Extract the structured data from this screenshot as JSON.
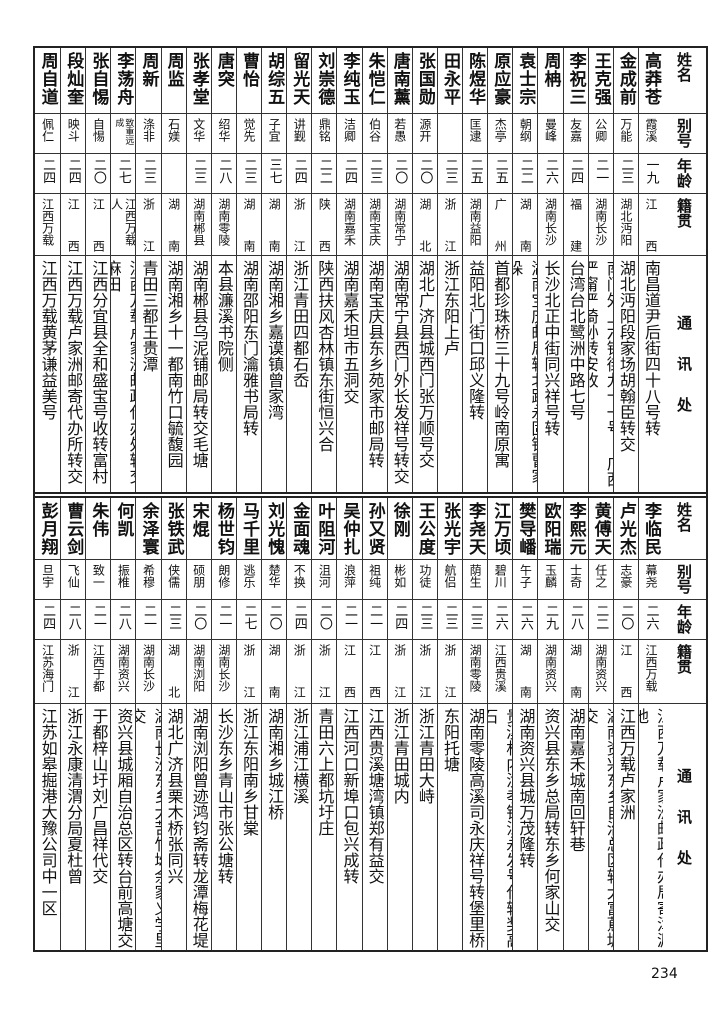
{
  "headers": {
    "name": "姓名",
    "alias": "别号",
    "age": "年龄",
    "native": "籍贯",
    "address": "通讯处"
  },
  "top": [
    {
      "name": "高莽苍",
      "alias": "霞溪",
      "age": "一九",
      "native": "江西",
      "address": "南昌道尹后街四十八号转"
    },
    {
      "name": "金成前",
      "alias": "万能",
      "age": "二三",
      "native": "湖北沔阳",
      "address": "湖北沔阳段家场胡翰臣转交"
    },
    {
      "name": "王克强",
      "alias": "公卿",
      "age": "二一",
      "native": "湖南长沙",
      "address": "南门外上六铺街九十一号\n广西严甯严猗孙转安收"
    },
    {
      "name": "李祝三",
      "alias": "友嘉",
      "age": "二四",
      "native": "福建",
      "address": "台湾台北鹭洲中路七号"
    },
    {
      "name": "周柟",
      "alias": "曼峰",
      "age": "二六",
      "native": "湖南长沙",
      "address": "长沙北正中街同兴祥号转"
    },
    {
      "name": "袁士宗",
      "alias": "朝纲",
      "age": "二二",
      "native": "湖南",
      "address": "湖南宝庆邮局转北路永固镇曹家垛"
    },
    {
      "name": "原应豪",
      "alias": "杰亭",
      "age": "二五",
      "native": "广州",
      "address": "首都珍珠桥三十九号岭南原寓"
    },
    {
      "name": "陈煜华",
      "alias": "匡逮",
      "age": "二五",
      "native": "湖南益阳",
      "address": "益阳北门街口邱义隆转"
    },
    {
      "name": "田永平",
      "alias": "",
      "age": "二三",
      "native": "浙江",
      "address": "浙江东阳上卢"
    },
    {
      "name": "张国勋",
      "alias": "源开",
      "age": "二〇",
      "native": "湖北",
      "address": "湖北广济县城西门张万顺号交"
    },
    {
      "name": "唐南薰",
      "alias": "若愚",
      "age": "二〇",
      "native": "湖南常宁",
      "address": "湖南常宁县西门外长发祥号转交"
    },
    {
      "name": "朱恺仁",
      "alias": "伯谷",
      "age": "二三",
      "native": "湖南宝庆",
      "address": "湖南宝庆县东乡苑家市邮局转"
    },
    {
      "name": "李纯玉",
      "alias": "洁卿",
      "age": "二四",
      "native": "湖南嘉禾",
      "address": "湖南嘉禾坦市五洞交"
    },
    {
      "name": "刘崇德",
      "alias": "鼎铭",
      "age": "二二",
      "native": "陕西",
      "address": "陕西扶风杏林镇东街恒兴合"
    },
    {
      "name": "留光天",
      "alias": "讲觐",
      "age": "二四",
      "native": "浙江",
      "address": "浙江青田四都石岙"
    },
    {
      "name": "胡综五",
      "alias": "子宜",
      "age": "三七",
      "native": "湖南",
      "address": "湖南湘乡嘉谟镇曾家湾"
    },
    {
      "name": "曹怡",
      "alias": "觉先",
      "age": "二三",
      "native": "湖南",
      "address": "湖南邵阳东门瀹雅书局转"
    },
    {
      "name": "唐突",
      "alias": "绍华",
      "age": "二八",
      "native": "湖南零陵",
      "address": "本县濂溪书院侧"
    },
    {
      "name": "张孝堂",
      "alias": "文华",
      "age": "二三",
      "native": "湖南郴县",
      "address": "湖南郴县乌泥铺邮局转交毛塘"
    },
    {
      "name": "周监",
      "alias": "石媄",
      "age": "",
      "native": "湖南",
      "address": "湖南湘乡十一都南竹口毓馥园"
    },
    {
      "name": "周新",
      "alias": "涤非",
      "age": "二三",
      "native": "浙江",
      "address": "青田三都王贵潭"
    },
    {
      "name": "李荡舟",
      "alias": "致重远成",
      "age": "二七",
      "native": "江西万载人",
      "address": "江西万载卢家洲邮政代办处转交麻田"
    },
    {
      "name": "张自惕",
      "alias": "自惕",
      "age": "二〇",
      "native": "江西",
      "address": "江西分宜县全和盛宝号收转富村"
    },
    {
      "name": "段灿奎",
      "alias": "映斗",
      "age": "二四",
      "native": "江西",
      "address": "江西万载卢家洲邮寄代办所转交"
    },
    {
      "name": "周自道",
      "alias": "佩仁",
      "age": "二四",
      "native": "江西万载",
      "address": "江西万载黄茅谦益美号"
    }
  ],
  "bottom": [
    {
      "name": "李临民",
      "alias": "幕尧",
      "age": "二六",
      "native": "江西万载",
      "address": "江西万载卢家洲邮政代办局寄漳源地"
    },
    {
      "name": "卢光杰",
      "alias": "志豪",
      "age": "二〇",
      "native": "江西",
      "address": "江西万载卢家洲"
    },
    {
      "name": "黄傅天",
      "alias": "任之",
      "age": "二二",
      "native": "湖南资兴",
      "address": "湖南资兴东乡自治总区转大富蔦塘交"
    },
    {
      "name": "李熙元",
      "alias": "士奇",
      "age": "二八",
      "native": "湖南",
      "address": "湖南嘉禾城南回轩巷"
    },
    {
      "name": "欧阳瑞",
      "alias": "玉麟",
      "age": "二九",
      "native": "湖南资兴",
      "address": "资兴县东乡总局转东乡何家山交"
    },
    {
      "name": "樊导嶓",
      "alias": "午子",
      "age": "二六",
      "native": "湖南",
      "address": "湖南资兴县城万茂隆转"
    },
    {
      "name": "江万顷",
      "alias": "碧川",
      "age": "二六",
      "native": "江西贵溪",
      "address": "贵溪村内汝孝铎江永发号代转奖高石"
    },
    {
      "name": "李尧天",
      "alias": "荫生",
      "age": "二三",
      "native": "湖南零陵",
      "address": "湖南零陵高溪司永庆祥号转堡里桥"
    },
    {
      "name": "张光宇",
      "alias": "航侣",
      "age": "二三",
      "native": "浙江",
      "address": "东阳托塘"
    },
    {
      "name": "王公度",
      "alias": "功徒",
      "age": "二三",
      "native": "浙江",
      "address": "浙江青田大峙"
    },
    {
      "name": "徐刚",
      "alias": "彬如",
      "age": "二四",
      "native": "浙江",
      "address": "浙江青田城内"
    },
    {
      "name": "孙又贤",
      "alias": "祖纯",
      "age": "二一",
      "native": "江西",
      "address": "江西贵溪塘湾镇郑有益交"
    },
    {
      "name": "吴仲扎",
      "alias": "浪萍",
      "age": "二一",
      "native": "江西",
      "address": "江西河口新埠口包兴成转"
    },
    {
      "name": "叶阻河",
      "alias": "沮河",
      "age": "二〇",
      "native": "浙江",
      "address": "青田六上都坑圩庄"
    },
    {
      "name": "金面魂",
      "alias": "不换",
      "age": "二四",
      "native": "浙江",
      "address": "浙江浦江横溪"
    },
    {
      "name": "刘光愧",
      "alias": "楚华",
      "age": "二〇",
      "native": "湖南",
      "address": "湖南湘乡城江桥"
    },
    {
      "name": "马千里",
      "alias": "逃乐",
      "age": "二七",
      "native": "浙江",
      "address": "浙江东阳南乡甘棠"
    },
    {
      "name": "杨世钧",
      "alias": "朗修",
      "age": "二一",
      "native": "湖南长沙",
      "address": "长沙东乡青山市张公塘转"
    },
    {
      "name": "宋焜",
      "alias": "硕朋",
      "age": "二〇",
      "native": "湖南浏阳",
      "address": "湖南浏阳曾迹鸿钧斋转龙潭梅花堤"
    },
    {
      "name": "张铁武",
      "alias": "侠儒",
      "age": "二三",
      "native": "湖北",
      "address": "湖北广济县栗木桥张同兴"
    },
    {
      "name": "余泽寰",
      "alias": "希穆",
      "age": "二一",
      "native": "湖南长沙",
      "address": "湖南长沙东乡大苦竹坳余家义学里交"
    },
    {
      "name": "何凯",
      "alias": "振椎",
      "age": "二八",
      "native": "湖南资兴",
      "address": "资兴县城厢自治总区转台前高塘交"
    },
    {
      "name": "朱伟",
      "alias": "致一",
      "age": "二一",
      "native": "江西于都",
      "address": "于都梓山圩刘广昌祥代交"
    },
    {
      "name": "曹云剑",
      "alias": "飞仙",
      "age": "二八",
      "native": "浙江",
      "address": "浙江永康清渭分局夏杜曾"
    },
    {
      "name": "彭月翔",
      "alias": "旦宇",
      "age": "二四",
      "native": "江苏海门",
      "address": "江苏如皋掘港大豫公司中一区"
    }
  ],
  "page_number": "234"
}
